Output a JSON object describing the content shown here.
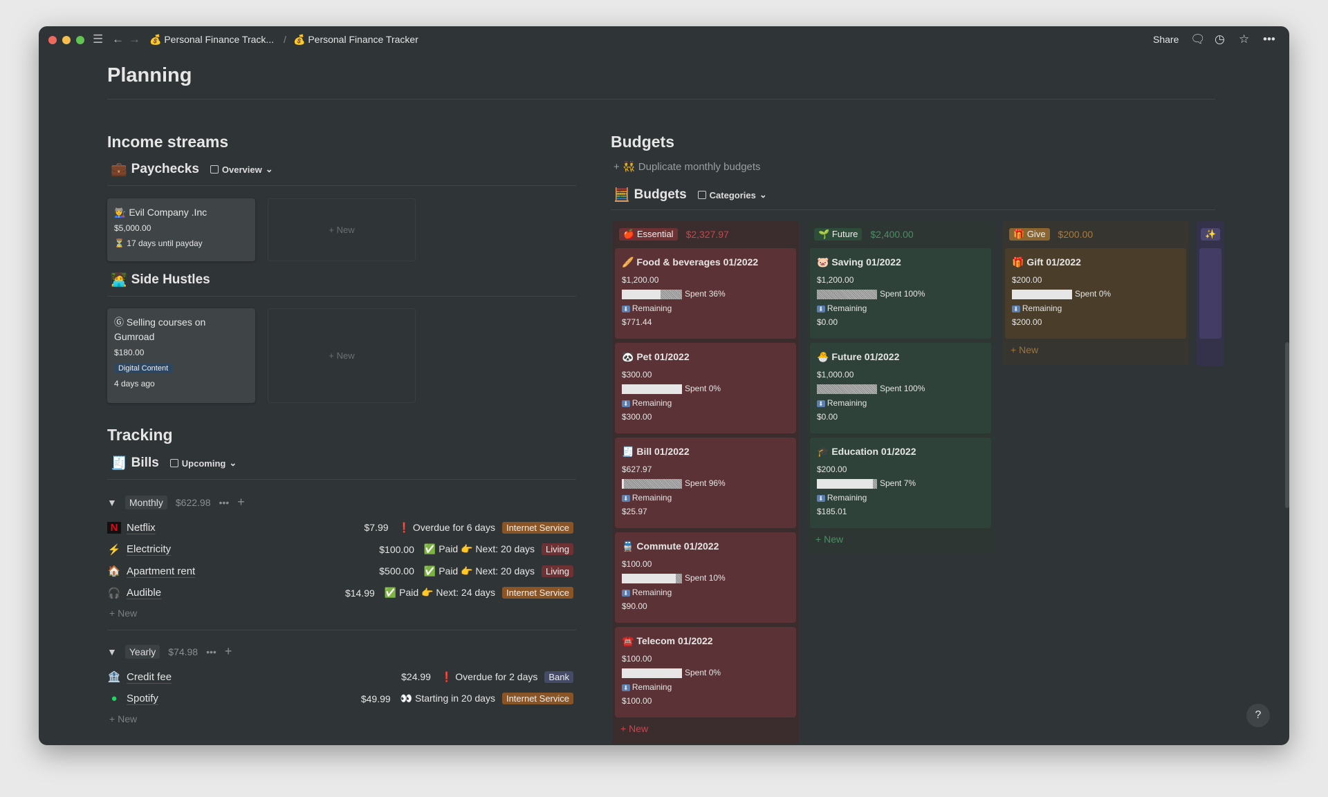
{
  "window": {
    "breadcrumb": [
      "Personal Finance Track...",
      "Personal Finance Tracker"
    ],
    "share": "Share",
    "crumb_icon": "money-bag-icon"
  },
  "page": {
    "title": "Planning"
  },
  "income": {
    "title": "Income streams",
    "paychecks": {
      "title": "Paychecks",
      "view": "Overview",
      "cards": [
        {
          "icon": "🧑‍🏭",
          "title": "Evil Company .Inc",
          "amount": "$5,000.00",
          "note": "⏳ 17 days until payday"
        }
      ],
      "new": "New"
    },
    "side": {
      "title": "Side Hustles",
      "cards": [
        {
          "icon": "Ⓖ",
          "title": "Selling courses on Gumroad",
          "amount": "$180.00",
          "tag": "Digital Content",
          "note": "4 days ago"
        }
      ],
      "new": "New"
    }
  },
  "tracking": {
    "title": "Tracking",
    "bills": {
      "title": "Bills",
      "view": "Upcoming",
      "groups": [
        {
          "label": "Monthly",
          "total": "$622.98",
          "rows": [
            {
              "icon": "N",
              "name": "Netflix",
              "amount": "$7.99",
              "status": "❗ Overdue for 6 days",
              "tag": "Internet Service",
              "tag_color": "#8a5526"
            },
            {
              "icon": "⚡",
              "name": "Electricity",
              "amount": "$100.00",
              "status": "✅ Paid 👉 Next: 20 days",
              "tag": "Living",
              "tag_color": "#6e3235"
            },
            {
              "icon": "🏠",
              "name": "Apartment rent",
              "amount": "$500.00",
              "status": "✅ Paid 👉 Next: 20 days",
              "tag": "Living",
              "tag_color": "#6e3235"
            },
            {
              "icon": "🎧",
              "name": "Audible",
              "amount": "$14.99",
              "status": "✅ Paid 👉 Next: 24 days",
              "tag": "Internet Service",
              "tag_color": "#8a5526"
            }
          ]
        },
        {
          "label": "Yearly",
          "total": "$74.98",
          "rows": [
            {
              "icon": "🏦",
              "name": "Credit fee",
              "amount": "$24.99",
              "status": "❗ Overdue for 2 days",
              "tag": "Bank",
              "tag_color": "#454a66"
            },
            {
              "icon": "●",
              "name": "Spotify",
              "amount": "$49.99",
              "status": "👀 Starting in 20 days",
              "tag": "Internet Service",
              "tag_color": "#8a5526"
            }
          ]
        }
      ],
      "new": "New"
    }
  },
  "budgets": {
    "title": "Budgets",
    "duplicate": "👯 Duplicate monthly budgets",
    "db_title": "Budgets",
    "view": "Categories",
    "remaining_label": "Remaining",
    "new": "New",
    "columns": [
      {
        "icon": "🍎",
        "label": "Essential",
        "total": "$2,327.97",
        "colors": {
          "col": "#3b2c2e",
          "card": "#5b3336",
          "tag": "#6e3235",
          "total": "#c9464c",
          "new": "#c9464c"
        },
        "cards": [
          {
            "icon": "🥖",
            "title": "Food & beverages 01/2022",
            "amount": "$1,200.00",
            "spent": 36,
            "spent_label": "Spent 36%",
            "remaining": "$771.44"
          },
          {
            "icon": "🐼",
            "title": "Pet 01/2022",
            "amount": "$300.00",
            "spent": 0,
            "spent_label": "Spent 0%",
            "remaining": "$300.00"
          },
          {
            "icon": "🧾",
            "title": "Bill 01/2022",
            "amount": "$627.97",
            "spent": 96,
            "spent_label": "Spent 96%",
            "remaining": "$25.97"
          },
          {
            "icon": "🚆",
            "title": "Commute 01/2022",
            "amount": "$100.00",
            "spent": 10,
            "spent_label": "Spent 10%",
            "remaining": "$90.00"
          },
          {
            "icon": "☎️",
            "title": "Telecom 01/2022",
            "amount": "$100.00",
            "spent": 0,
            "spent_label": "Spent 0%",
            "remaining": "$100.00"
          }
        ]
      },
      {
        "icon": "🌱",
        "label": "Future",
        "total": "$2,400.00",
        "colors": {
          "col": "#2e3634",
          "card": "#2f423a",
          "tag": "#2d4d3a",
          "total": "#4a8f62",
          "new": "#4a8f62"
        },
        "cards": [
          {
            "icon": "🐷",
            "title": "Saving 01/2022",
            "amount": "$1,200.00",
            "spent": 100,
            "spent_label": "Spent 100%",
            "remaining": "$0.00"
          },
          {
            "icon": "🐣",
            "title": "Future 01/2022",
            "amount": "$1,000.00",
            "spent": 100,
            "spent_label": "Spent 100%",
            "remaining": "$0.00"
          },
          {
            "icon": "🎓",
            "title": "Education 01/2022",
            "amount": "$200.00",
            "spent": 7,
            "spent_label": "Spent 7%",
            "remaining": "$185.01"
          }
        ]
      },
      {
        "icon": "🎁",
        "label": "Give",
        "total": "$200.00",
        "colors": {
          "col": "#37352f",
          "card": "#4a3e2a",
          "tag": "#8a6530",
          "total": "#b07a34",
          "new": "#9b7340"
        },
        "cards": [
          {
            "icon": "🎁",
            "title": "Gift 01/2022",
            "amount": "$200.00",
            "spent": 0,
            "spent_label": "Spent 0%",
            "remaining": "$200.00"
          }
        ]
      }
    ]
  },
  "help": "?"
}
